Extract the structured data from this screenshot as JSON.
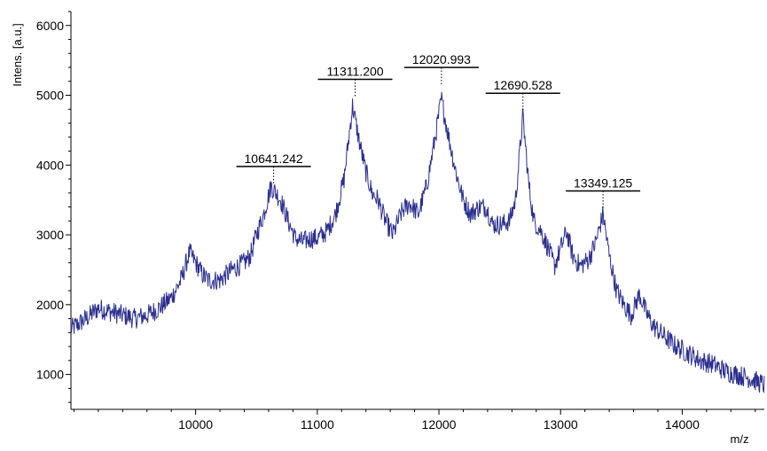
{
  "chart_data": {
    "type": "line",
    "title": "",
    "xlabel": "m/z",
    "ylabel": "Intens. [a.u.]",
    "xlim": [
      8975,
      14675
    ],
    "ylim": [
      500,
      6200
    ],
    "x_ticks": [
      10000,
      11000,
      12000,
      13000,
      14000
    ],
    "x_minor_step": 200,
    "y_ticks": [
      1000,
      2000,
      3000,
      4000,
      5000,
      6000
    ],
    "y_minor_step": 200,
    "grid": false,
    "line_color": "#2b2f8f",
    "series": [
      {
        "control_points": [
          [
            8975,
            1650
          ],
          [
            9100,
            1800
          ],
          [
            9200,
            1950
          ],
          [
            9300,
            1900
          ],
          [
            9400,
            1850
          ],
          [
            9500,
            1800
          ],
          [
            9600,
            1850
          ],
          [
            9700,
            1950
          ],
          [
            9800,
            2100
          ],
          [
            9880,
            2350
          ],
          [
            9950,
            2750
          ],
          [
            10000,
            2600
          ],
          [
            10050,
            2450
          ],
          [
            10100,
            2350
          ],
          [
            10200,
            2350
          ],
          [
            10300,
            2500
          ],
          [
            10400,
            2600
          ],
          [
            10450,
            2700
          ],
          [
            10500,
            3000
          ],
          [
            10560,
            3300
          ],
          [
            10620,
            3700
          ],
          [
            10700,
            3500
          ],
          [
            10760,
            3200
          ],
          [
            10820,
            2950
          ],
          [
            10880,
            2900
          ],
          [
            10950,
            2950
          ],
          [
            11000,
            2950
          ],
          [
            11080,
            3050
          ],
          [
            11150,
            3300
          ],
          [
            11220,
            3800
          ],
          [
            11290,
            4850
          ],
          [
            11350,
            4300
          ],
          [
            11400,
            3900
          ],
          [
            11450,
            3600
          ],
          [
            11500,
            3500
          ],
          [
            11560,
            3200
          ],
          [
            11620,
            3000
          ],
          [
            11700,
            3350
          ],
          [
            11760,
            3450
          ],
          [
            11830,
            3300
          ],
          [
            11900,
            3700
          ],
          [
            11960,
            4300
          ],
          [
            12020,
            4950
          ],
          [
            12080,
            4400
          ],
          [
            12140,
            3900
          ],
          [
            12200,
            3500
          ],
          [
            12260,
            3300
          ],
          [
            12330,
            3400
          ],
          [
            12390,
            3400
          ],
          [
            12440,
            3150
          ],
          [
            12520,
            3150
          ],
          [
            12580,
            3200
          ],
          [
            12630,
            3500
          ],
          [
            12690,
            4700
          ],
          [
            12740,
            3700
          ],
          [
            12780,
            3200
          ],
          [
            12840,
            3050
          ],
          [
            12900,
            2800
          ],
          [
            12950,
            2550
          ],
          [
            13000,
            2800
          ],
          [
            13050,
            3050
          ],
          [
            13100,
            2700
          ],
          [
            13160,
            2550
          ],
          [
            13230,
            2650
          ],
          [
            13290,
            2900
          ],
          [
            13350,
            3300
          ],
          [
            13400,
            2700
          ],
          [
            13460,
            2200
          ],
          [
            13520,
            2000
          ],
          [
            13580,
            1850
          ],
          [
            13650,
            2150
          ],
          [
            13700,
            1900
          ],
          [
            13760,
            1700
          ],
          [
            13850,
            1550
          ],
          [
            13950,
            1400
          ],
          [
            14050,
            1300
          ],
          [
            14150,
            1200
          ],
          [
            14250,
            1150
          ],
          [
            14350,
            1050
          ],
          [
            14450,
            1000
          ],
          [
            14550,
            950
          ],
          [
            14675,
            850
          ]
        ],
        "noise_amplitude": 150
      }
    ],
    "annotations": [
      {
        "text": "10641.242",
        "x": 10641.242,
        "y": 3700
      },
      {
        "text": "11311.200",
        "x": 11311.2,
        "y": 4950
      },
      {
        "text": "12020.993",
        "x": 12020.993,
        "y": 5120
      },
      {
        "text": "12690.528",
        "x": 12690.528,
        "y": 4750
      },
      {
        "text": "13349.125",
        "x": 13349.125,
        "y": 3350
      }
    ]
  }
}
